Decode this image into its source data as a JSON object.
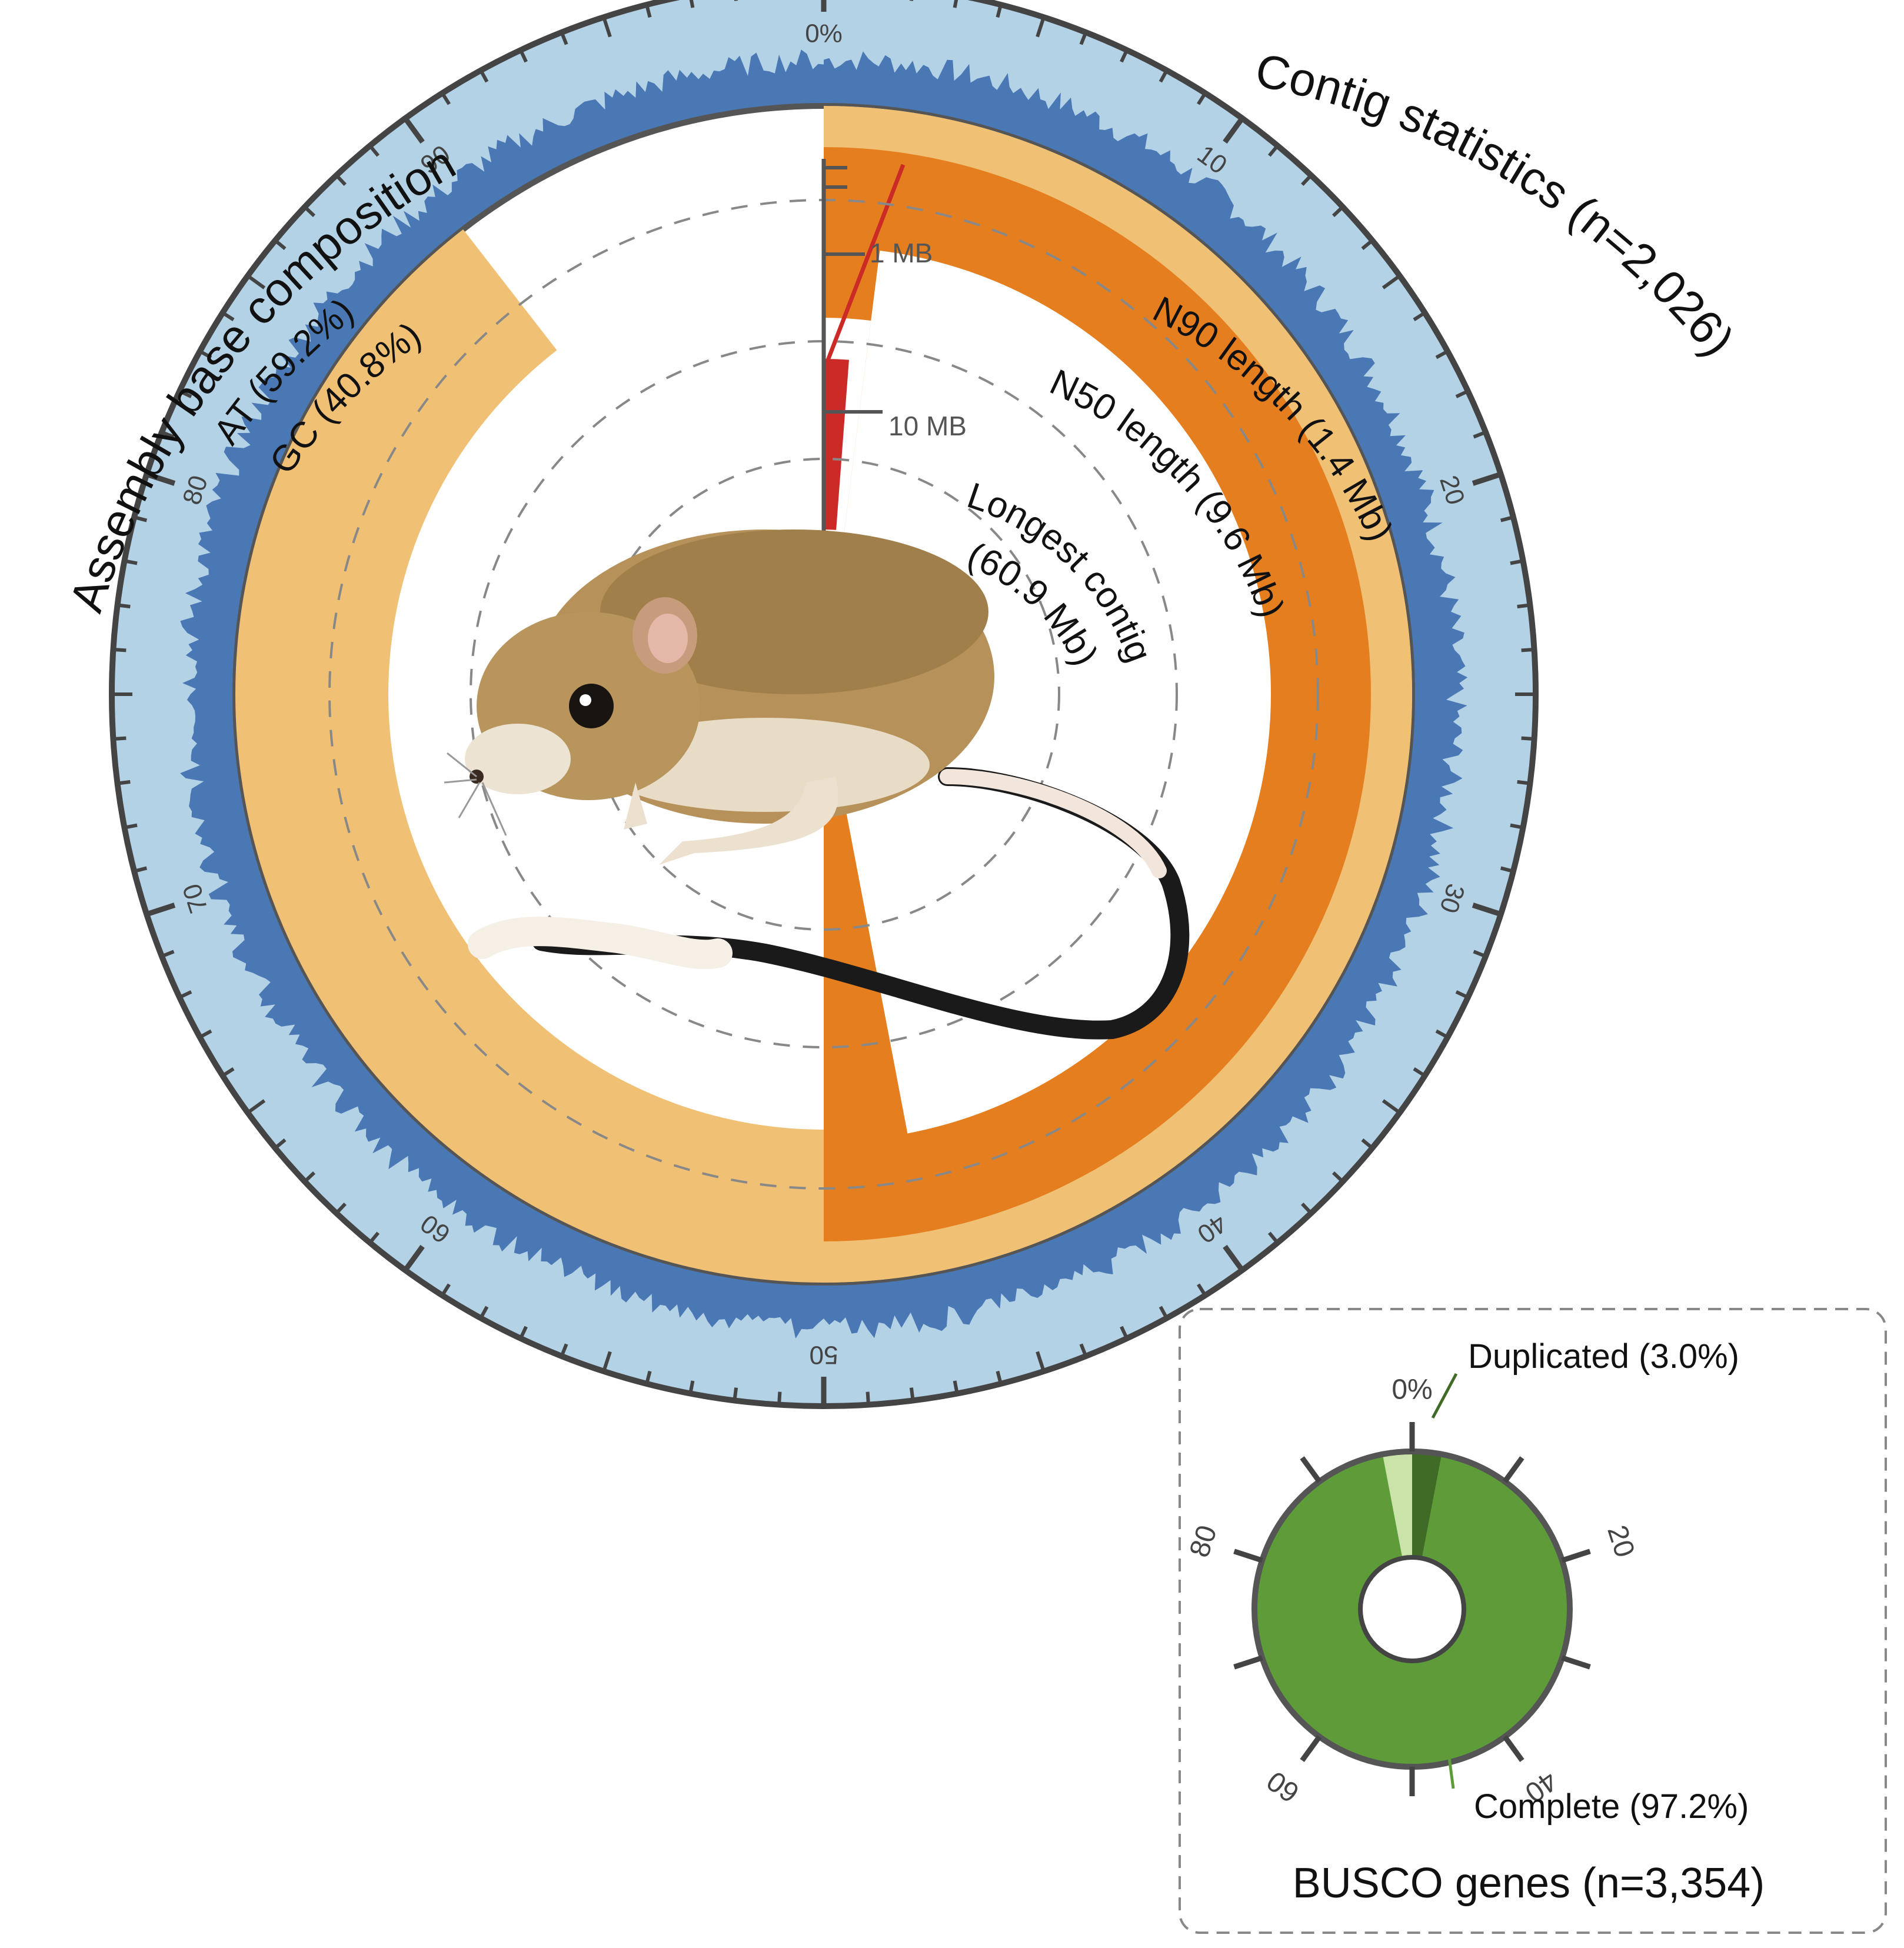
{
  "titles": {
    "left": "Assembly base composition",
    "right": "Contig statistics (n=2,026)"
  },
  "composition": {
    "at_label": "AT (59.2%)",
    "gc_label": "GC (40.8%)",
    "at_color": "#b4d2e6",
    "gc_color": "#4a78b4"
  },
  "contig_labels": {
    "n90": "N90 length (1.4 Mb)",
    "n50": "N50 length (9.6 Mb)",
    "longest_line1": "Longest contig",
    "longest_line2": "(60.9 Mb)"
  },
  "scale_labels": {
    "one_mb": "1 MB",
    "ten_mb": "10 MB"
  },
  "outer_ticks": [
    "0%",
    "10",
    "20",
    "30",
    "40",
    "50",
    "60",
    "70",
    "80",
    "90"
  ],
  "busco": {
    "title": "BUSCO genes (n=3,354)",
    "complete_label": "Complete (97.2%)",
    "duplicated_label": "Duplicated (3.0%)",
    "ticks": [
      "0%",
      "20",
      "40",
      "60",
      "80"
    ],
    "complete_color": "#5e9c3a",
    "duplicated_color": "#3f6b26",
    "fragmented_color": "#c9e3a8"
  },
  "illustration": {
    "subject": "kangaroo-rat"
  },
  "chart_data": [
    {
      "type": "radial",
      "name": "snail-plot",
      "title": "Contig statistics (n=2,026)",
      "contig_count": 2026,
      "longest_contig_mb": 60.9,
      "n50_mb": 9.6,
      "n90_mb": 1.4,
      "base_composition": {
        "AT_percent": 59.2,
        "GC_percent": 40.8
      },
      "axis_ticks_percent": [
        0,
        10,
        20,
        30,
        40,
        50,
        60,
        70,
        80,
        90
      ],
      "radial_scale_labels": [
        "1 MB",
        "10 MB"
      ]
    },
    {
      "type": "pie",
      "name": "busco-donut",
      "title": "BUSCO genes (n=3,354)",
      "total": 3354,
      "categories": [
        "Complete",
        "Duplicated"
      ],
      "values": [
        97.2,
        3.0
      ],
      "axis_ticks_percent": [
        0,
        20,
        40,
        60,
        80
      ]
    }
  ]
}
